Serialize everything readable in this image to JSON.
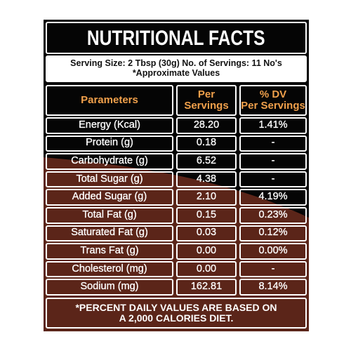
{
  "header": {
    "title": "NUTRITIONAL FACTS",
    "serving": "Serving Size: 2 Tbsp (30g) No. of Servings: 11 No's",
    "note": "*Approximate Values"
  },
  "table": {
    "columns": [
      [
        "Parameters"
      ],
      [
        "Per",
        "Servings"
      ],
      [
        "% DV",
        "Per Servings"
      ]
    ],
    "rows": [
      [
        "Energy (Kcal)",
        "28.20",
        "1.41%"
      ],
      [
        "Protein (g)",
        "0.18",
        "-"
      ],
      [
        "Carbohydrate (g)",
        "6.52",
        "-"
      ],
      [
        "Total Sugar (g)",
        "4.38",
        "-"
      ],
      [
        "Added Sugar (g)",
        "2.10",
        "4.19%"
      ],
      [
        "Total Fat (g)",
        "0.15",
        "0.23%"
      ],
      [
        "Saturated Fat (g)",
        "0.03",
        "0.12%"
      ],
      [
        "Trans Fat (g)",
        "0.00",
        "0.00%"
      ],
      [
        "Cholesterol (mg)",
        "0.00",
        "-"
      ],
      [
        "Sodium (mg)",
        "162.81",
        "8.14%"
      ]
    ]
  },
  "footer": [
    "*PERCENT DAILY VALUES ARE BASED ON",
    "A 2,000 CALORIES DIET."
  ]
}
